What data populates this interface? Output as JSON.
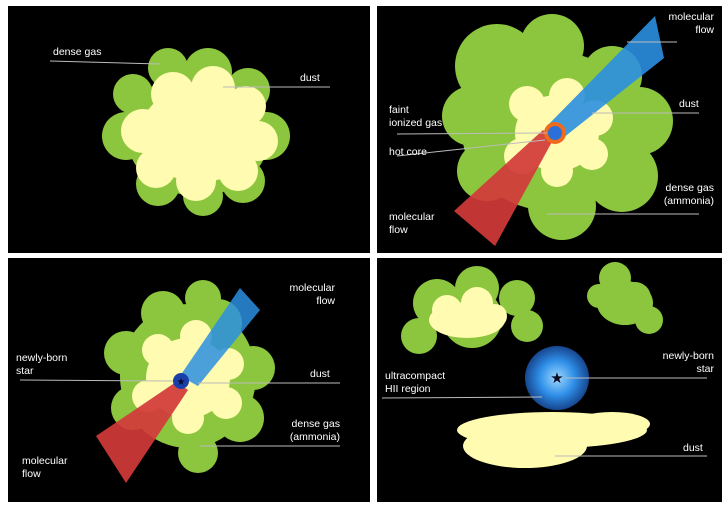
{
  "panels": [
    {
      "labels": {
        "dense_gas": "dense gas",
        "dust": "dust"
      }
    },
    {
      "labels": {
        "molecular_flow_top": "molecular\nflow",
        "dust": "dust",
        "faint_ionized_gas": "faint\nionized gas",
        "hot_core": "hot core",
        "dense_gas_ammonia": "dense gas\n(ammonia)",
        "molecular_flow_bottom": "molecular\nflow"
      }
    },
    {
      "labels": {
        "molecular_flow_top": "molecular\nflow",
        "newly_born_star": "newly-born\nstar",
        "dust": "dust",
        "dense_gas_ammonia": "dense gas\n(ammonia)",
        "molecular_flow_bottom": "molecular\nflow"
      }
    },
    {
      "labels": {
        "newly_born_star": "newly-born\nstar",
        "uchii_region": "ultracompact\nHII region",
        "dust": "dust"
      }
    }
  ],
  "colors": {
    "background": "#000000",
    "dense_gas": "#8cc63f",
    "dust": "#fffbb0",
    "molecular_flow_blue": "#2b8fe0",
    "molecular_flow_red": "#d23a3a",
    "hot_core": "#f06a1e",
    "hii_glow": "#1e7fe0"
  }
}
